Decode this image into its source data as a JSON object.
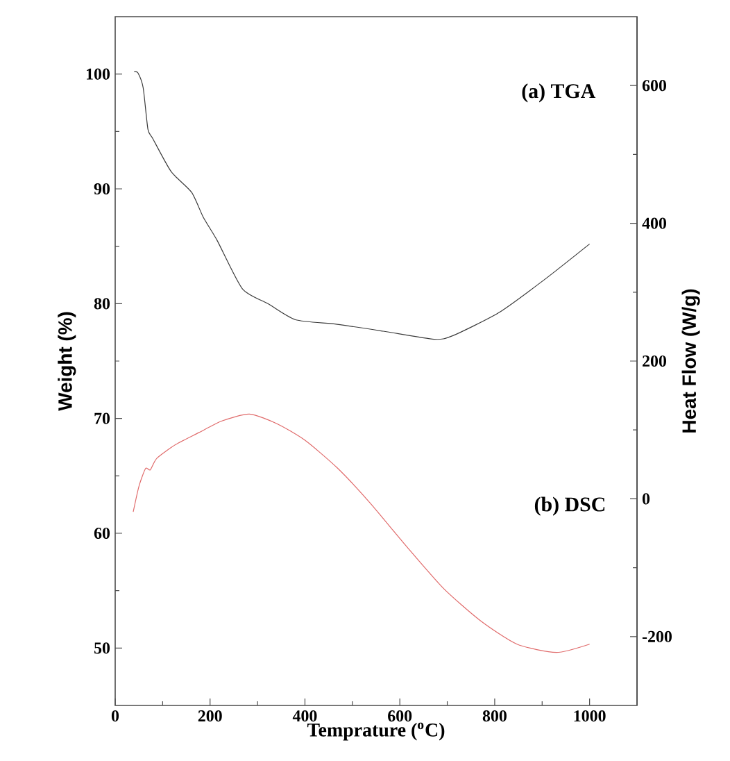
{
  "chart_data": {
    "type": "line",
    "xlabel": "Temprature ($^{o}$C)",
    "ylabel": "Weight (%)",
    "y2label": "Heat Flow (W/g)",
    "annotations": [
      "(a) TGA",
      "(b) DSC"
    ],
    "xlim": [
      0,
      1100
    ],
    "xticks": [
      0,
      200,
      400,
      600,
      800,
      1000
    ],
    "ylim": [
      45,
      105
    ],
    "yticks": [
      50,
      60,
      70,
      80,
      90,
      100
    ],
    "y2lim": [
      -300,
      700
    ],
    "y2ticks": [
      -200,
      0,
      200,
      400,
      600
    ],
    "marker": "none",
    "line_style": "solid",
    "series": [
      {
        "color": "#3a3a3a",
        "x": [
          40,
          48,
          59,
          69,
          79,
          118,
          161,
          186,
          215,
          268,
          322,
          380,
          468,
          565,
          672,
          711,
          808,
          905,
          1000
        ],
        "values": [
          100.2,
          100.1,
          98.8,
          95.2,
          94.4,
          91.5,
          89.7,
          87.5,
          85.5,
          81.3,
          80.0,
          78.6,
          78.2,
          77.6,
          76.9,
          77.2,
          79.2,
          82.1,
          85.2
        ]
      },
      {
        "color": "#e06a6a",
        "axis": "y2",
        "x": [
          38,
          50,
          64,
          74,
          88,
          128,
          176,
          225,
          283,
          341,
          400,
          468,
          536,
          614,
          692,
          770,
          847,
          930,
          1000
        ],
        "values": [
          -19,
          18,
          44,
          42,
          59,
          79,
          96,
          113,
          123,
          109,
          85,
          45,
          -5,
          -69,
          -130,
          -177,
          -211,
          -223,
          -211
        ]
      }
    ]
  }
}
